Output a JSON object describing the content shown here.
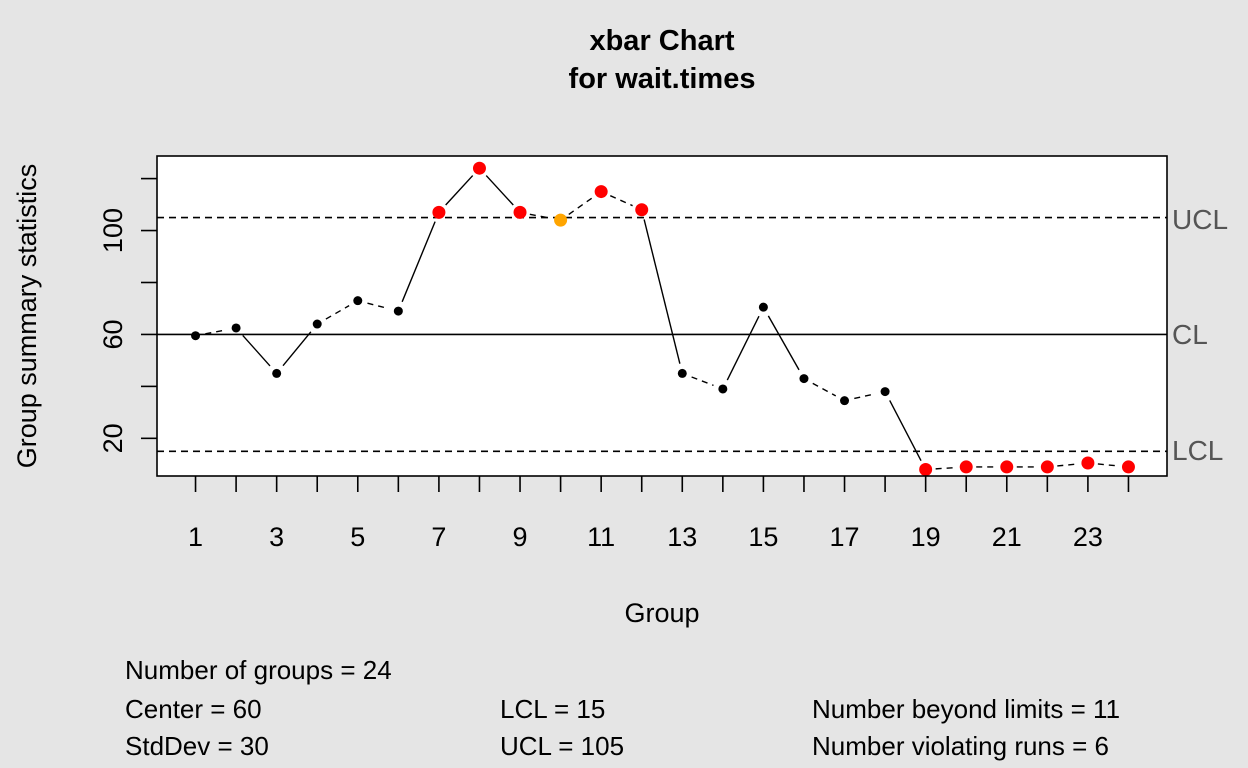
{
  "chart_data": {
    "type": "line",
    "title": "xbar Chart",
    "subtitle": "for wait.times",
    "xlabel": "Group",
    "ylabel": "Group summary statistics",
    "x": [
      1,
      2,
      3,
      4,
      5,
      6,
      7,
      8,
      9,
      10,
      11,
      12,
      13,
      14,
      15,
      16,
      17,
      18,
      19,
      20,
      21,
      22,
      23,
      24
    ],
    "values": [
      59.5,
      62.5,
      45,
      64,
      73,
      69,
      107,
      124,
      107,
      104,
      115,
      108,
      45,
      39,
      70.5,
      43,
      34.5,
      38,
      8,
      9,
      9,
      9,
      10.5,
      9
    ],
    "point_status": [
      "normal",
      "normal",
      "normal",
      "normal",
      "normal",
      "normal",
      "beyond",
      "beyond",
      "beyond",
      "run",
      "beyond",
      "beyond",
      "normal",
      "normal",
      "normal",
      "normal",
      "normal",
      "normal",
      "beyond",
      "beyond",
      "beyond",
      "beyond",
      "beyond",
      "beyond"
    ],
    "xticks": [
      1,
      2,
      3,
      4,
      5,
      6,
      7,
      8,
      9,
      10,
      11,
      12,
      13,
      14,
      15,
      16,
      17,
      18,
      19,
      20,
      21,
      22,
      23,
      24
    ],
    "xtick_labels": [
      "1",
      "3",
      "5",
      "7",
      "9",
      "11",
      "13",
      "15",
      "17",
      "19",
      "21",
      "23"
    ],
    "yticks": [
      20,
      40,
      60,
      80,
      100,
      120
    ],
    "ytick_labels": [
      "20",
      "60",
      "100"
    ],
    "xlim": [
      0.05,
      24.95
    ],
    "ylim": [
      5.5,
      128.7
    ],
    "center": 60,
    "lcl": 15,
    "ucl": 105,
    "limit_labels": {
      "ucl": "UCL",
      "cl": "CL",
      "lcl": "LCL"
    },
    "colors": {
      "normal": "#000000",
      "beyond": "#ff0000",
      "run": "#ffa500",
      "background": "#e5e5e5",
      "plot_background": "#ffffff"
    },
    "grid": false,
    "legend": "none"
  },
  "stats": {
    "groups": "Number of groups = 24",
    "center": "Center = 60",
    "stddev": "StdDev = 30",
    "lcl": "LCL = 15",
    "ucl": "UCL = 105",
    "beyond": "Number beyond limits = 11",
    "violating": "Number violating runs = 6"
  }
}
